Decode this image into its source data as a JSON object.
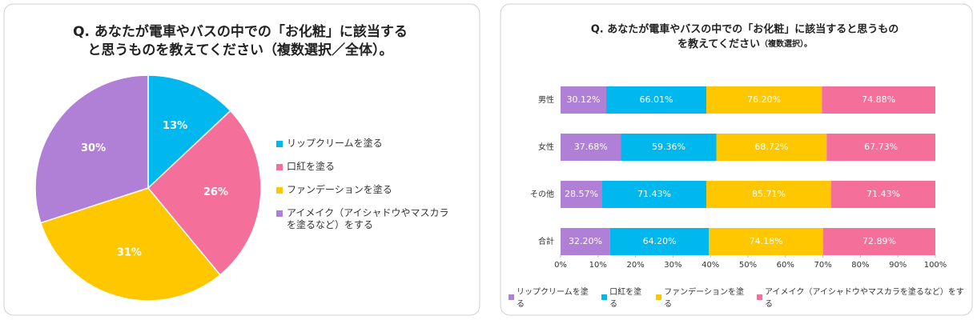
{
  "chart_data": [
    {
      "type": "pie",
      "title": [
        "Q. あなたが電車やバスの中での「お化粧」に該当する",
        "と思うものを教えてください（複数選択／全体）。"
      ],
      "categories": [
        "リップクリームを塗る",
        "口紅を塗る",
        "ファンデーションを塗る",
        "アイメイク（アイシャドウやマスカラを塗るなど）をする"
      ],
      "values": [
        13,
        26,
        31,
        30
      ],
      "value_labels": [
        "13%",
        "26%",
        "31%",
        "30%"
      ],
      "colors": [
        "#00b8ee",
        "#f46f9a",
        "#ffc700",
        "#b07fd6"
      ]
    },
    {
      "type": "bar",
      "orientation": "horizontal",
      "stacking": "percent",
      "title": [
        "Q. あなたが電車やバスの中での「お化粧」に該当すると思うもの",
        "を教えてください"
      ],
      "subtitle": "（複数選択）。",
      "categories": [
        "男性",
        "女性",
        "その他",
        "合計"
      ],
      "series": [
        {
          "name": "リップクリームを塗る",
          "color": "#b07fd6",
          "values": [
            30.12,
            37.68,
            28.57,
            32.2
          ],
          "value_labels": [
            "30.12%",
            "37.68%",
            "28.57%",
            "32.20%"
          ]
        },
        {
          "name": "口紅を塗る",
          "color": "#00b8ee",
          "values": [
            66.01,
            59.36,
            71.43,
            64.2
          ],
          "value_labels": [
            "66.01%",
            "59.36%",
            "71.43%",
            "64.20%"
          ]
        },
        {
          "name": "ファンデーションを塗る",
          "color": "#ffc700",
          "values": [
            76.2,
            68.72,
            85.71,
            74.18
          ],
          "value_labels": [
            "76.20%",
            "68.72%",
            "85.71%",
            "74.18%"
          ]
        },
        {
          "name": "アイメイク（アイシャドウやマスカラを塗るなど）をする",
          "color": "#f46f9a",
          "values": [
            74.88,
            67.73,
            71.43,
            72.89
          ],
          "value_labels": [
            "74.88%",
            "67.73%",
            "71.43%",
            "72.89%"
          ]
        }
      ],
      "xlim": [
        0,
        100
      ],
      "xticks": [
        {
          "value": 0,
          "label": "0%"
        },
        {
          "value": 10,
          "label": "10%"
        },
        {
          "value": 20,
          "label": "20%"
        },
        {
          "value": 30,
          "label": "30%"
        },
        {
          "value": 40,
          "label": "40%"
        },
        {
          "value": 50,
          "label": "50%"
        },
        {
          "value": 60,
          "label": "60%"
        },
        {
          "value": 70,
          "label": "70%"
        },
        {
          "value": 80,
          "label": "80%"
        },
        {
          "value": 90,
          "label": "90%"
        },
        {
          "value": 100,
          "label": "100%"
        }
      ]
    }
  ]
}
